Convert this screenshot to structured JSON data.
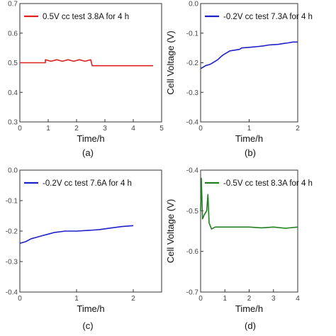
{
  "chart_data": [
    {
      "type": "line",
      "caption": "(a)",
      "xlabel": "Time/h",
      "ylabel": "",
      "xlim": [
        0,
        5
      ],
      "ylim": [
        0.3,
        0.7
      ],
      "xticks": [
        "0",
        "1",
        "2",
        "3",
        "4",
        "5"
      ],
      "yticks": [
        "0.3",
        "0.4",
        "0.5",
        "0.6",
        "0.7"
      ],
      "legend": "top-left",
      "series": [
        {
          "name": "0.5V cc test 3.8A for 4 h",
          "color": "#e02020",
          "x": [
            0,
            0.9,
            0.9,
            1.1,
            1.3,
            1.5,
            1.7,
            1.9,
            2.1,
            2.3,
            2.5,
            2.55,
            3.0,
            3.5,
            4.0,
            4.7
          ],
          "y": [
            0.5,
            0.5,
            0.51,
            0.505,
            0.51,
            0.505,
            0.51,
            0.505,
            0.51,
            0.505,
            0.51,
            0.49,
            0.49,
            0.49,
            0.49,
            0.49
          ]
        }
      ]
    },
    {
      "type": "line",
      "caption": "(b)",
      "xlabel": "Time/h",
      "ylabel": "Cell Voltage (V)",
      "xlim": [
        0,
        2
      ],
      "ylim": [
        -0.4,
        0.0
      ],
      "xticks": [
        "0",
        "1",
        "2"
      ],
      "yticks": [
        "0.0",
        "-0.1",
        "-0.2",
        "-0.3",
        "-0.4"
      ],
      "legend": "top-left",
      "series": [
        {
          "name": "-0.2V cc test 7.3A for 4 h",
          "color": "#2020c8",
          "x": [
            0,
            0.05,
            0.1,
            0.2,
            0.3,
            0.35,
            0.45,
            0.55,
            0.6,
            0.8,
            0.85,
            1.0,
            1.2,
            1.3,
            1.4,
            1.6,
            1.7,
            1.8,
            1.9,
            2.0
          ],
          "y": [
            -0.22,
            -0.215,
            -0.21,
            -0.205,
            -0.195,
            -0.19,
            -0.175,
            -0.165,
            -0.16,
            -0.155,
            -0.15,
            -0.148,
            -0.145,
            -0.143,
            -0.14,
            -0.138,
            -0.135,
            -0.133,
            -0.13,
            -0.13
          ]
        }
      ]
    },
    {
      "type": "line",
      "caption": "(c)",
      "xlabel": "Time/h",
      "ylabel": "",
      "xlim": [
        0,
        2.5
      ],
      "ylim": [
        -0.4,
        0.0
      ],
      "xticks": [
        "0",
        "1",
        "2"
      ],
      "yticks": [
        "0.0",
        "-0.1",
        "-0.2",
        "-0.3",
        "-0.4"
      ],
      "legend": "top-left",
      "series": [
        {
          "name": "-0.2V cc test 7.6A for 4 h",
          "color": "#2020c8",
          "x": [
            0,
            0.1,
            0.2,
            0.3,
            0.4,
            0.5,
            0.6,
            0.8,
            1.0,
            1.2,
            1.4,
            1.6,
            1.8,
            2.0
          ],
          "y": [
            -0.24,
            -0.235,
            -0.225,
            -0.22,
            -0.215,
            -0.21,
            -0.205,
            -0.2,
            -0.2,
            -0.198,
            -0.195,
            -0.19,
            -0.185,
            -0.182
          ]
        }
      ]
    },
    {
      "type": "line",
      "caption": "(d)",
      "xlabel": "Time/h",
      "ylabel": "Cell Voltage (V)",
      "xlim": [
        0,
        4
      ],
      "ylim": [
        -0.7,
        -0.4
      ],
      "xticks": [
        "0",
        "1",
        "2",
        "3",
        "4"
      ],
      "yticks": [
        "-0.4",
        "-0.5",
        "-0.6",
        "-0.7"
      ],
      "legend": "top-left",
      "series": [
        {
          "name": "-0.5V cc test 8.3A for 4 h",
          "color": "#208020",
          "x": [
            0,
            0.03,
            0.08,
            0.15,
            0.25,
            0.3,
            0.35,
            0.45,
            0.6,
            0.8,
            1.0,
            1.5,
            2.0,
            2.5,
            3.0,
            3.5,
            4.0
          ],
          "y": [
            -0.5,
            -0.42,
            -0.52,
            -0.51,
            -0.5,
            -0.46,
            -0.53,
            -0.545,
            -0.54,
            -0.54,
            -0.54,
            -0.54,
            -0.54,
            -0.542,
            -0.54,
            -0.543,
            -0.54
          ]
        }
      ]
    }
  ]
}
